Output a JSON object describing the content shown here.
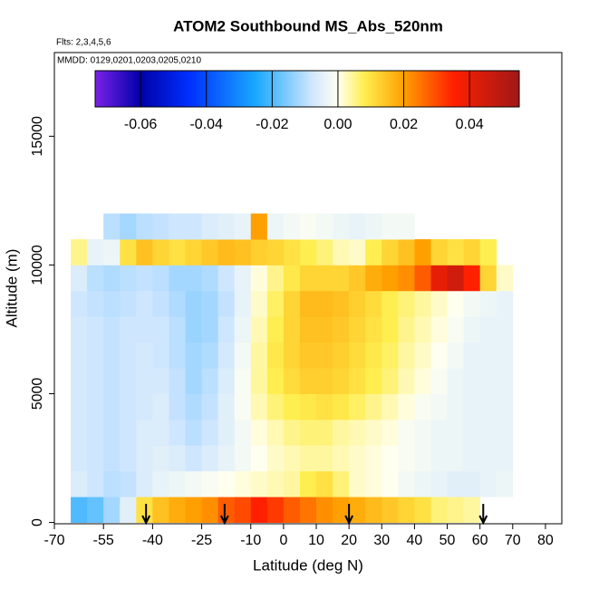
{
  "chart_data": {
    "type": "heatmap",
    "title": "ATOM2 Southbound MS_Abs_520nm",
    "annotations": [
      "Flts: 2,3,4,5,6",
      "MMDD: 0129,0201,0203,0205,0210"
    ],
    "x_label": "Latitude (deg N)",
    "y_label": "Altitude (m)",
    "xlim": [
      -70,
      85
    ],
    "ylim": [
      -50,
      18250
    ],
    "xticks": [
      -70,
      -55,
      -40,
      -25,
      -10,
      0,
      10,
      20,
      30,
      40,
      50,
      60,
      70,
      80
    ],
    "yticks": [
      0,
      5000,
      10000,
      15000
    ],
    "x_edges": [
      -65,
      -60,
      -55,
      -50,
      -45,
      -40,
      -35,
      -30,
      -25,
      -20,
      -15,
      -10,
      -5,
      0,
      5,
      10,
      15,
      20,
      25,
      30,
      35,
      40,
      45,
      50,
      55,
      60,
      65,
      70
    ],
    "y_edges": [
      0,
      1000,
      2000,
      3000,
      4000,
      5000,
      6000,
      7000,
      8000,
      9000,
      10000,
      11000,
      12000
    ],
    "z": [
      [
        -0.02,
        -0.018,
        -0.012,
        -0.005,
        0.01,
        0.015,
        0.018,
        0.02,
        0.022,
        0.028,
        0.03,
        0.035,
        0.032,
        0.028,
        0.025,
        0.022,
        0.02,
        0.018,
        0.016,
        0.014,
        0.012,
        0.01,
        0.006,
        0.005,
        0.004,
        null,
        null
      ],
      [
        -0.006,
        -0.008,
        -0.01,
        -0.009,
        -0.006,
        -0.004,
        -0.003,
        -0.002,
        -0.001,
        0,
        0.001,
        0.002,
        0.003,
        0.004,
        0.008,
        0.01,
        0.006,
        0.002,
        0.001,
        0,
        -0.002,
        -0.003,
        -0.004,
        -0.005,
        -0.005,
        -0.004,
        -0.003
      ],
      [
        -0.007,
        -0.008,
        -0.009,
        -0.008,
        -0.006,
        -0.005,
        -0.006,
        -0.008,
        -0.006,
        -0.004,
        -0.002,
        0,
        0.002,
        0.003,
        0.004,
        0.004,
        0.003,
        0.002,
        0.001,
        0,
        -0.001,
        -0.002,
        -0.003,
        -0.003,
        -0.004,
        -0.004,
        -0.004
      ],
      [
        -0.007,
        -0.008,
        -0.009,
        -0.008,
        -0.006,
        -0.006,
        -0.008,
        -0.01,
        -0.008,
        -0.005,
        -0.002,
        0.001,
        0.003,
        0.005,
        0.006,
        0.006,
        0.004,
        0.003,
        0.002,
        0.001,
        -0.001,
        -0.002,
        -0.003,
        -0.003,
        -0.004,
        -0.004,
        -0.004
      ],
      [
        -0.007,
        -0.008,
        -0.009,
        -0.008,
        -0.007,
        -0.006,
        -0.009,
        -0.011,
        -0.009,
        -0.005,
        -0.001,
        0.003,
        0.006,
        0.008,
        0.009,
        0.01,
        0.009,
        0.007,
        0.005,
        0.003,
        0.001,
        -0.001,
        -0.002,
        -0.003,
        -0.004,
        -0.004,
        -0.004
      ],
      [
        -0.007,
        -0.008,
        -0.009,
        -0.008,
        -0.007,
        -0.007,
        -0.009,
        -0.012,
        -0.01,
        -0.006,
        -0.001,
        0.004,
        0.008,
        0.011,
        0.013,
        0.013,
        0.012,
        0.01,
        0.008,
        0.006,
        0.003,
        0.001,
        -0.001,
        -0.003,
        -0.004,
        -0.004,
        -0.004
      ],
      [
        -0.007,
        -0.008,
        -0.009,
        -0.008,
        -0.007,
        -0.008,
        -0.01,
        -0.012,
        -0.011,
        -0.007,
        -0.002,
        0.004,
        0.009,
        0.012,
        0.014,
        0.014,
        0.013,
        0.011,
        0.009,
        0.007,
        0.004,
        0.002,
        0,
        -0.002,
        -0.004,
        -0.004,
        -0.004
      ],
      [
        -0.007,
        -0.008,
        -0.009,
        -0.008,
        -0.008,
        -0.008,
        -0.01,
        -0.013,
        -0.012,
        -0.008,
        -0.003,
        0.003,
        0.008,
        0.012,
        0.015,
        0.015,
        0.014,
        0.012,
        0.01,
        0.008,
        0.005,
        0.003,
        0.001,
        -0.001,
        -0.003,
        -0.004,
        -0.004
      ],
      [
        -0.008,
        -0.009,
        -0.01,
        -0.009,
        -0.008,
        -0.009,
        -0.011,
        -0.013,
        -0.012,
        -0.009,
        -0.004,
        0.002,
        0.007,
        0.012,
        0.016,
        0.016,
        0.015,
        0.013,
        0.011,
        0.008,
        0.006,
        0.004,
        0.002,
        0,
        -0.002,
        -0.003,
        -0.004
      ],
      [
        -0.006,
        -0.01,
        -0.011,
        -0.01,
        -0.009,
        -0.01,
        -0.012,
        -0.012,
        -0.011,
        -0.008,
        -0.004,
        0.001,
        0.005,
        0.009,
        0.012,
        0.012,
        0.012,
        0.014,
        0.018,
        0.02,
        0.022,
        0.028,
        0.04,
        0.045,
        0.035,
        0.012,
        0.002
      ],
      [
        0.005,
        -0.004,
        -0.003,
        0.01,
        0.015,
        0.012,
        0.01,
        0.012,
        0.014,
        0.016,
        0.015,
        0.013,
        0.012,
        0.01,
        0.008,
        0.006,
        0.003,
        0.002,
        0.008,
        0.012,
        0.015,
        0.02,
        0.012,
        0.01,
        0.012,
        0.008,
        null
      ],
      [
        null,
        null,
        -0.01,
        -0.012,
        -0.01,
        -0.009,
        -0.008,
        -0.008,
        -0.006,
        -0.005,
        -0.004,
        0.02,
        -0.003,
        -0.002,
        -0.001,
        -0.002,
        -0.003,
        -0.004,
        -0.003,
        -0.002,
        -0.002,
        null,
        null,
        null,
        null,
        null,
        null
      ]
    ],
    "colorbar_lim": [
      -0.0738,
      0.0551
    ],
    "colorbar_ticks": [
      -0.06,
      -0.04,
      -0.02,
      {
        "value": 0,
        "label": "0.00"
      },
      0.02,
      0.04
    ],
    "colorscale": [
      {
        "value": -0.0738,
        "color": "#7a22e8"
      },
      {
        "value": -0.06,
        "color": "#0000a8"
      },
      {
        "value": -0.045,
        "color": "#0030ff"
      },
      {
        "value": -0.025,
        "color": "#19a8ff"
      },
      {
        "value": -0.008,
        "color": "#cfe6ff"
      },
      {
        "value": 0,
        "color": "#fffff0"
      },
      {
        "value": 0.008,
        "color": "#ffee50"
      },
      {
        "value": 0.02,
        "color": "#ffa000"
      },
      {
        "value": 0.035,
        "color": "#ff2000"
      },
      {
        "value": 0.0551,
        "color": "#a01818"
      }
    ],
    "arrow_latitudes": [
      -42,
      -18,
      20,
      61
    ]
  }
}
